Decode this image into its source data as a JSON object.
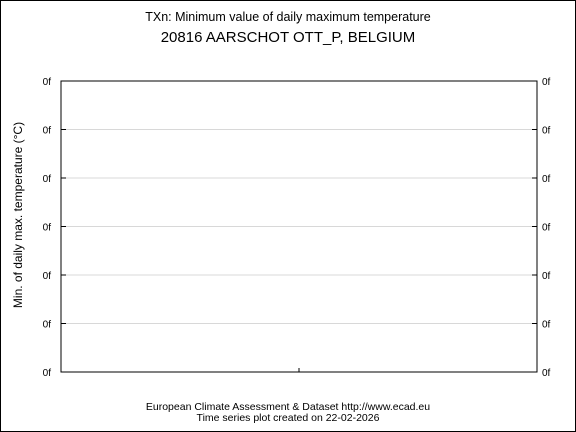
{
  "chart_data": {
    "type": "line",
    "title": "TXn: Minimum value of daily maximum temperature",
    "subtitle": "20816 AARSCHOT OTT_P, BELGIUM",
    "ylabel": "Min. of daily max. temperature (°C)",
    "xlabel": "",
    "y_tick_labels": [
      "0f",
      "0f",
      "0f",
      "0f",
      "0f",
      "0f",
      "0f"
    ],
    "x_ticks": 1,
    "series": [],
    "grid": true
  },
  "footer": {
    "line1": "European Climate Assessment & Dataset  http://www.ecad.eu",
    "line2": "Time series plot created on 22-02-2026"
  }
}
